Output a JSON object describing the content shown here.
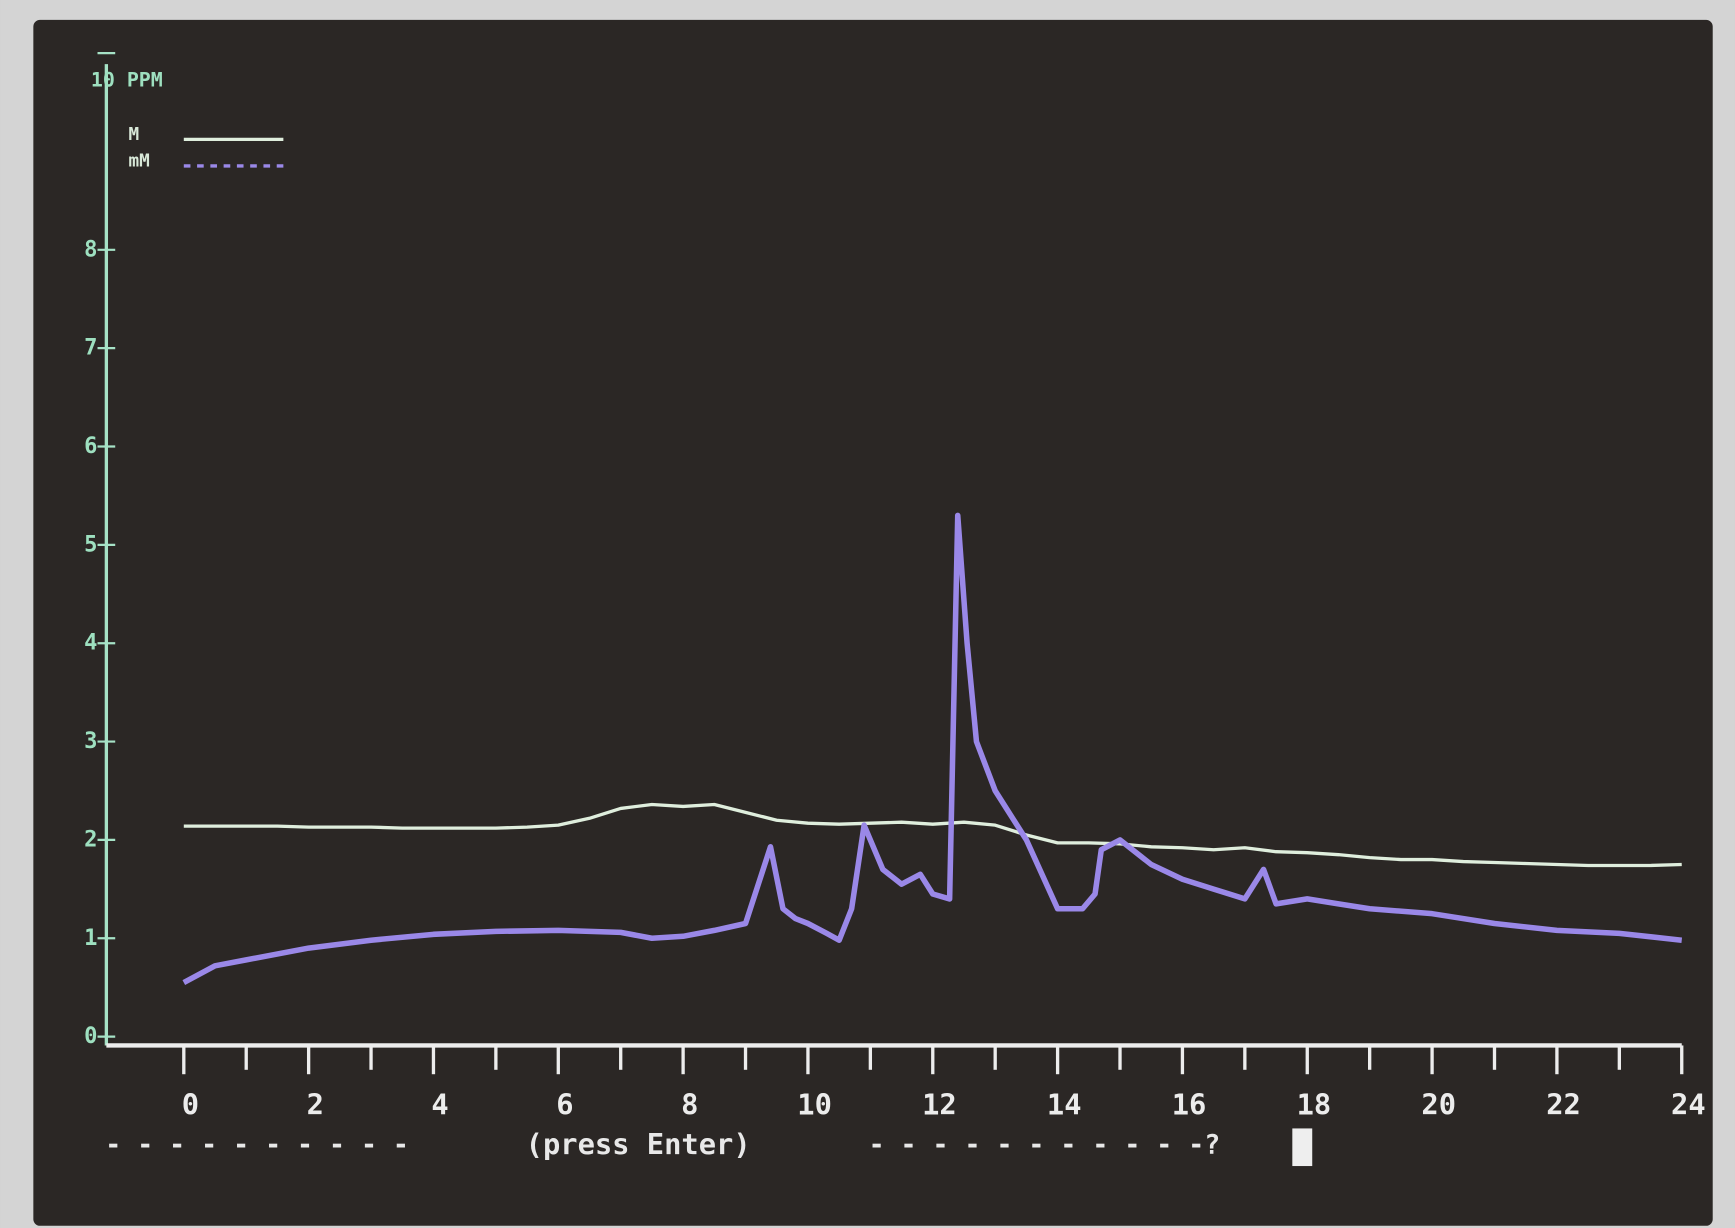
{
  "chart_data": {
    "type": "line",
    "xlim": [
      0,
      24
    ],
    "xticks": [
      0,
      2,
      4,
      6,
      8,
      10,
      12,
      14,
      16,
      18,
      20,
      22,
      24
    ],
    "xminorticks": [
      1,
      3,
      5,
      7,
      9,
      11,
      13,
      15,
      17,
      19,
      21,
      23
    ],
    "ylim": [
      0,
      10
    ],
    "yticks": [
      0,
      1,
      2,
      3,
      4,
      5,
      6,
      7,
      8,
      {
        "value": 10,
        "label": "10 PPM"
      }
    ],
    "legend": "top-left",
    "series": [
      {
        "name": "M",
        "color": "#dfeedd",
        "x": [
          0,
          0.5,
          1,
          1.5,
          2,
          2.5,
          3,
          3.5,
          4,
          4.5,
          5,
          5.5,
          6,
          6.5,
          7,
          7.5,
          8,
          8.5,
          9,
          9.5,
          10,
          10.5,
          11,
          11.5,
          12,
          12.5,
          13,
          13.5,
          14,
          14.5,
          15,
          15.5,
          16,
          16.5,
          17,
          17.5,
          18,
          18.5,
          19,
          19.5,
          20,
          20.5,
          21,
          21.5,
          22,
          22.5,
          23,
          23.5,
          24
        ],
        "values": [
          2.14,
          2.14,
          2.14,
          2.14,
          2.13,
          2.13,
          2.13,
          2.12,
          2.12,
          2.12,
          2.12,
          2.13,
          2.15,
          2.22,
          2.32,
          2.36,
          2.34,
          2.36,
          2.28,
          2.2,
          2.17,
          2.16,
          2.17,
          2.18,
          2.16,
          2.18,
          2.15,
          2.05,
          1.97,
          1.97,
          1.96,
          1.93,
          1.92,
          1.9,
          1.92,
          1.88,
          1.87,
          1.85,
          1.82,
          1.8,
          1.8,
          1.78,
          1.77,
          1.76,
          1.75,
          1.74,
          1.74,
          1.74,
          1.75
        ]
      },
      {
        "name": "mM",
        "color": "#9a88e8",
        "x": [
          0,
          0.5,
          1,
          2,
          3,
          4,
          5,
          6,
          7,
          7.5,
          8,
          8.5,
          9,
          9.4,
          9.6,
          9.8,
          10,
          10.3,
          10.5,
          10.7,
          10.9,
          11.2,
          11.5,
          11.8,
          12,
          12.27,
          12.4,
          12.55,
          12.7,
          13,
          13.5,
          14,
          14.4,
          14.6,
          14.7,
          15,
          15.5,
          16,
          16.5,
          17,
          17.3,
          17.5,
          18,
          18.5,
          19,
          20,
          21,
          22,
          23,
          24
        ],
        "values": [
          0.55,
          0.72,
          0.78,
          0.9,
          0.98,
          1.04,
          1.07,
          1.08,
          1.06,
          1.0,
          1.02,
          1.08,
          1.15,
          1.93,
          1.3,
          1.2,
          1.15,
          1.05,
          0.98,
          1.3,
          2.15,
          1.7,
          1.55,
          1.65,
          1.45,
          1.4,
          5.3,
          4.0,
          3.0,
          2.5,
          2.0,
          1.3,
          1.3,
          1.45,
          1.9,
          2.0,
          1.75,
          1.6,
          1.5,
          1.4,
          1.7,
          1.35,
          1.4,
          1.35,
          1.3,
          1.25,
          1.15,
          1.08,
          1.05,
          0.98
        ]
      }
    ],
    "prompt_left": "- - - - - - - - - -",
    "prompt": "(press Enter)",
    "prompt_right": "- - - - - - - - - - -?"
  }
}
